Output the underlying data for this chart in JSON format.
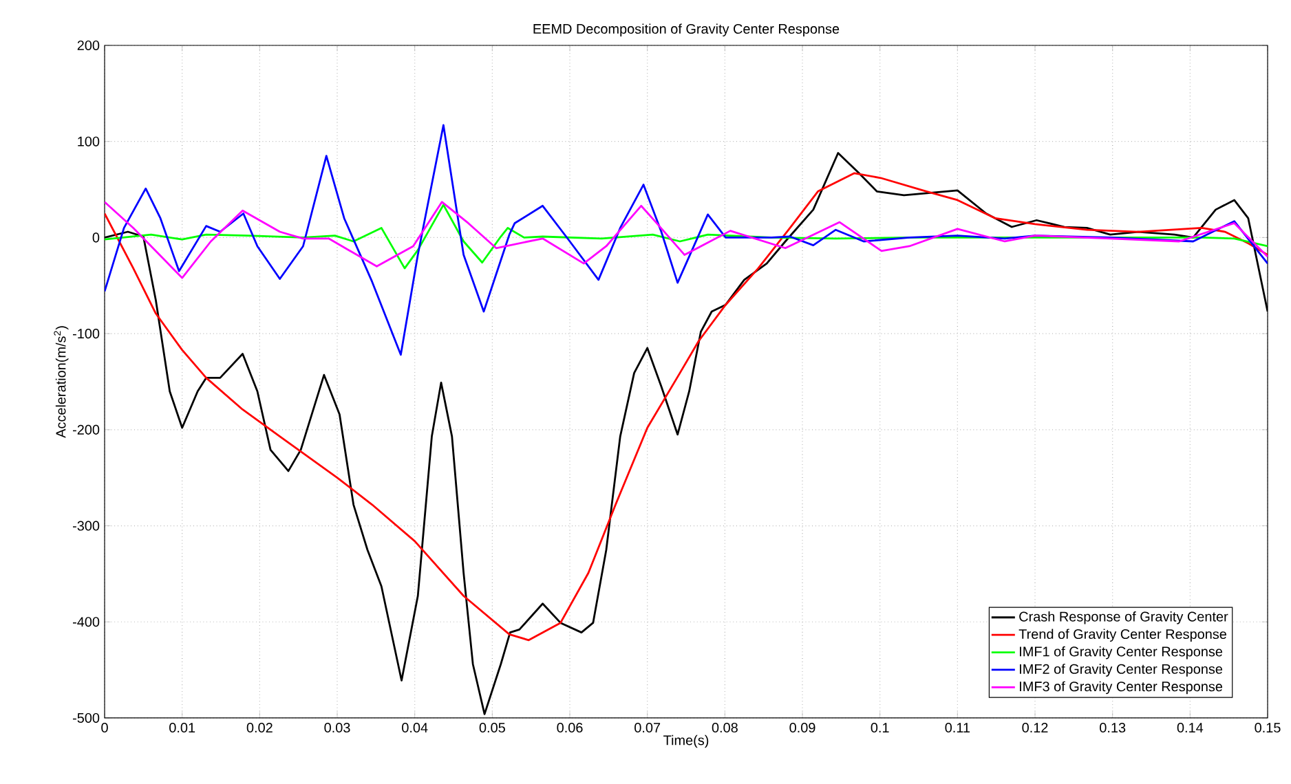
{
  "chart_data": {
    "type": "line",
    "title": "EEMD Decomposition of Gravity Center Response",
    "xlabel": "Time(s)",
    "ylabel": "Acceleration(m/s$^{2}$)",
    "xlim": [
      0,
      0.15
    ],
    "ylim": [
      -500,
      200
    ],
    "xticks": [
      0,
      0.01,
      0.02,
      0.03,
      0.04,
      0.05,
      0.06,
      0.07,
      0.08,
      0.09,
      0.1,
      0.11,
      0.12,
      0.13,
      0.14,
      0.15
    ],
    "yticks": [
      -500,
      -400,
      -300,
      -200,
      -100,
      0,
      100,
      200
    ],
    "grid": true,
    "legend": "bottom right",
    "line_style": "solid",
    "marker": "none",
    "series": [
      {
        "name": "Crash Response of Gravity Center",
        "color": "#000000",
        "x": [
          0,
          0.003,
          0.005,
          0.0066,
          0.0084,
          0.01,
          0.012,
          0.0131,
          0.0149,
          0.0178,
          0.0197,
          0.0214,
          0.0237,
          0.0253,
          0.0283,
          0.0303,
          0.0321,
          0.0339,
          0.0357,
          0.0383,
          0.0404,
          0.0422,
          0.0434,
          0.0448,
          0.0463,
          0.0475,
          0.049,
          0.0511,
          0.0523,
          0.0535,
          0.0565,
          0.0588,
          0.0615,
          0.063,
          0.0647,
          0.0665,
          0.0683,
          0.07,
          0.0718,
          0.0739,
          0.0754,
          0.0769,
          0.0783,
          0.0801,
          0.0825,
          0.0854,
          0.0878,
          0.0914,
          0.0946,
          0.0973,
          0.0996,
          0.1031,
          0.11,
          0.1137,
          0.117,
          0.1202,
          0.1238,
          0.1267,
          0.1297,
          0.1333,
          0.138,
          0.1404,
          0.1433,
          0.1457,
          0.1475,
          0.15
        ],
        "values": [
          0,
          6,
          1,
          -65,
          -160,
          -198,
          -160,
          -146,
          -146,
          -121,
          -160,
          -221,
          -243,
          -221,
          -143,
          -184,
          -278,
          -325,
          -363,
          -461,
          -373,
          -207,
          -151,
          -207,
          -349,
          -444,
          -496,
          -444,
          -411,
          -408,
          -381,
          -401,
          -411,
          -401,
          -325,
          -207,
          -141,
          -115,
          -155,
          -205,
          -160,
          -98,
          -77,
          -70,
          -44,
          -27,
          -4,
          29,
          88,
          67,
          48,
          44,
          49,
          25,
          11,
          18,
          11,
          10,
          3,
          6,
          3,
          0,
          29,
          39,
          20,
          -77
        ]
      },
      {
        "name": "Trend of Gravity Center Response",
        "color": "#ff0000",
        "x": [
          0,
          0.0037,
          0.0066,
          0.01,
          0.0131,
          0.0178,
          0.0226,
          0.03,
          0.0345,
          0.04,
          0.0463,
          0.0522,
          0.0547,
          0.0588,
          0.0624,
          0.0659,
          0.07,
          0.0742,
          0.0766,
          0.0801,
          0.0843,
          0.0884,
          0.092,
          0.0967,
          0.1001,
          0.106,
          0.11,
          0.1149,
          0.12,
          0.1267,
          0.1333,
          0.1415,
          0.1445,
          0.1475,
          0.15
        ],
        "values": [
          25,
          -32,
          -79,
          -117,
          -146,
          -179,
          -207,
          -250,
          -278,
          -316,
          -373,
          -413,
          -419,
          -401,
          -349,
          -278,
          -198,
          -141,
          -108,
          -70,
          -32,
          10,
          48,
          67,
          62,
          48,
          39,
          20,
          14,
          8,
          6,
          10,
          6,
          -6,
          -18
        ]
      },
      {
        "name": "IMF1 of Gravity Center Response",
        "color": "#00ff00",
        "x": [
          0,
          0.006,
          0.01,
          0.0131,
          0.0185,
          0.0256,
          0.0297,
          0.0321,
          0.0357,
          0.0387,
          0.0404,
          0.0437,
          0.0463,
          0.0487,
          0.0511,
          0.052,
          0.0541,
          0.0565,
          0.0641,
          0.0707,
          0.0742,
          0.0778,
          0.086,
          0.0943,
          0.1038,
          0.12,
          0.13,
          0.1415,
          0.1457,
          0.15
        ],
        "values": [
          -2,
          3,
          -2,
          3,
          2,
          0,
          2,
          -4,
          10,
          -32,
          -13,
          34,
          -4,
          -26,
          1,
          10,
          0,
          1,
          -1,
          3,
          -4,
          3,
          0,
          -1,
          0,
          0,
          0,
          0,
          -1,
          -9
        ]
      },
      {
        "name": "IMF2 of Gravity Center Response",
        "color": "#0000ff",
        "x": [
          0,
          0.0025,
          0.0053,
          0.0072,
          0.0096,
          0.0131,
          0.0149,
          0.0179,
          0.0197,
          0.0226,
          0.0256,
          0.0286,
          0.0309,
          0.0345,
          0.0382,
          0.0404,
          0.0437,
          0.0463,
          0.0489,
          0.0522,
          0.0529,
          0.0565,
          0.06,
          0.0637,
          0.0665,
          0.0695,
          0.0718,
          0.0739,
          0.0778,
          0.0801,
          0.086,
          0.0884,
          0.0914,
          0.0943,
          0.0979,
          0.1038,
          0.11,
          0.1161,
          0.12,
          0.1297,
          0.1404,
          0.1457,
          0.15
        ],
        "values": [
          -56,
          10,
          51,
          20,
          -35,
          12,
          6,
          25,
          -9,
          -43,
          -9,
          85,
          20,
          -46,
          -122,
          -18,
          117,
          -18,
          -77,
          3,
          15,
          33,
          -4,
          -44,
          10,
          55,
          6,
          -47,
          24,
          0,
          0,
          1,
          -8,
          8,
          -4,
          0,
          2,
          -1,
          2,
          0,
          -4,
          17,
          -27
        ]
      },
      {
        "name": "IMF3 of Gravity Center Response",
        "color": "#ff00ff",
        "x": [
          0,
          0.0037,
          0.01,
          0.0137,
          0.0178,
          0.0226,
          0.0256,
          0.0289,
          0.0351,
          0.0398,
          0.0435,
          0.0469,
          0.0505,
          0.0565,
          0.0618,
          0.0647,
          0.0692,
          0.0712,
          0.0748,
          0.0807,
          0.0878,
          0.0948,
          0.1002,
          0.1038,
          0.11,
          0.1161,
          0.12,
          0.1297,
          0.1386,
          0.1457,
          0.15
        ],
        "values": [
          37,
          10,
          -42,
          -4,
          28,
          6,
          -1,
          -1,
          -30,
          -9,
          37,
          15,
          -11,
          -1,
          -27,
          -9,
          33,
          15,
          -18,
          7,
          -11,
          16,
          -14,
          -9,
          9,
          -4,
          2,
          -1,
          -4,
          15,
          -20
        ]
      }
    ]
  }
}
